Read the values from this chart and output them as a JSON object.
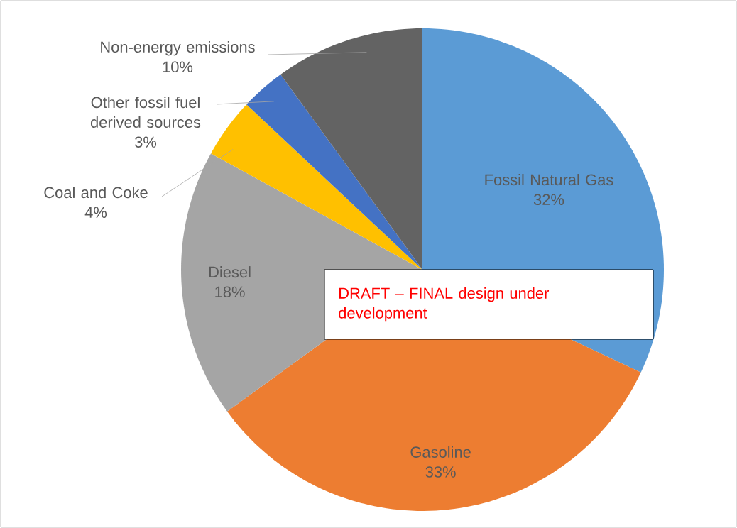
{
  "chart_data": {
    "type": "pie",
    "categories": [
      "Fossil Natural Gas",
      "Gasoline",
      "Diesel",
      "Coal and Coke",
      "Other fossil fuel derived sources",
      "Non-energy emissions"
    ],
    "values": [
      32,
      33,
      18,
      4,
      3,
      10
    ],
    "value_labels": [
      "32%",
      "33%",
      "18%",
      "4%",
      "3%",
      "10%"
    ],
    "colors": [
      "#5b9bd5",
      "#ed7d31",
      "#a5a5a5",
      "#ffc000",
      "#4472c4",
      "#636363"
    ],
    "annotations": [
      "DRAFT – FINAL design under development"
    ]
  }
}
